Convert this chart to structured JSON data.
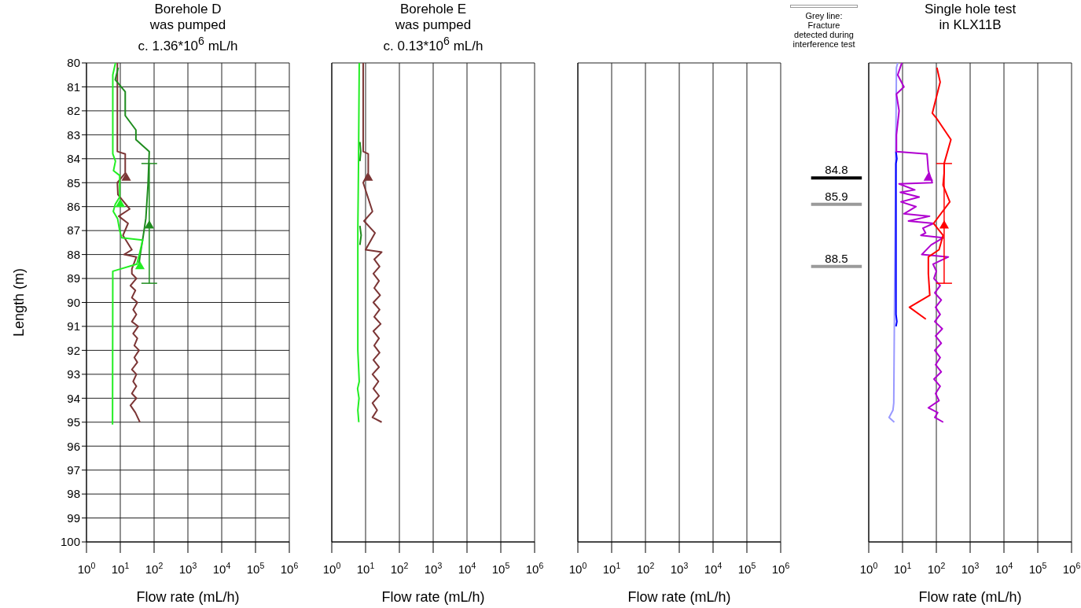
{
  "chart_data": [
    {
      "type": "line",
      "title": "Borehole D\nwas pumped\nc. 1.36*10$^{6}$ mL/h",
      "xlabel": "Flow rate (mL/h)",
      "ylabel": "Length (m)",
      "log": "x",
      "grid": true,
      "xlim": [
        1,
        1000000
      ],
      "xticks": [
        {
          "value": 1,
          "label": "10$^{0}$"
        },
        {
          "value": 10,
          "label": "10$^{1}$"
        },
        {
          "value": 100,
          "label": "10$^{2}$"
        },
        {
          "value": 1000,
          "label": "10$^{3}$"
        },
        {
          "value": 10000,
          "label": "10$^{4}$"
        },
        {
          "value": 100000,
          "label": "10$^{5}$"
        },
        {
          "value": 1000000,
          "label": "10$^{6}$"
        }
      ],
      "ylim": [
        100,
        80
      ],
      "yticks": [
        80,
        81,
        82,
        83,
        84,
        85,
        86,
        87,
        88,
        89,
        90,
        91,
        92,
        93,
        94,
        95,
        96,
        97,
        98,
        99,
        100
      ],
      "series": [
        {
          "color": "#7b3535",
          "x": [
            8.2,
            8.2,
            14,
            14,
            8.2,
            8.5,
            19,
            9,
            17,
            12,
            22,
            13,
            30,
            22,
            22,
            30,
            20,
            28,
            22,
            32,
            24,
            30,
            22,
            34,
            24,
            32,
            26,
            36,
            26,
            32,
            22,
            30,
            24,
            30,
            22,
            30,
            20,
            28,
            38
          ],
          "values": [
            80.0,
            83.7,
            83.8,
            84.6,
            85.0,
            85.5,
            86.1,
            86.4,
            86.7,
            87.2,
            87.8,
            88.0,
            88.1,
            88.6,
            88.8,
            89.0,
            89.3,
            89.5,
            89.8,
            90.0,
            90.3,
            90.5,
            90.8,
            91.0,
            91.3,
            91.5,
            91.8,
            92.0,
            92.3,
            92.5,
            92.8,
            93.0,
            93.3,
            93.5,
            93.8,
            94.0,
            94.3,
            94.6,
            95.0
          ]
        },
        {
          "color": "#1e8c1e",
          "x": [
            8.7,
            7.1,
            14,
            14,
            29,
            29,
            72,
            66,
            57,
            48,
            38,
            35
          ],
          "values": [
            80.2,
            80.7,
            81.2,
            82.2,
            82.8,
            83.2,
            83.7,
            85.1,
            86.5,
            87.2,
            88.1,
            88.5
          ]
        },
        {
          "color": "#22ee22",
          "x": [
            7.2,
            6.0,
            6.0,
            7.2,
            6.3,
            9.6,
            9.6,
            7.1,
            6.2,
            8.3,
            9.6,
            11,
            46,
            38,
            31,
            6.0,
            5.9
          ],
          "values": [
            80.0,
            80.5,
            83.8,
            84.1,
            84.5,
            84.7,
            85.6,
            85.9,
            86.2,
            86.5,
            87.0,
            87.3,
            87.4,
            87.9,
            88.4,
            88.7,
            95.1
          ]
        },
        {
          "type": "scatter",
          "marker": "triangle",
          "color": "#7b3535",
          "x": [
            15
          ],
          "values": [
            84.8
          ]
        },
        {
          "type": "scatter",
          "marker": "triangle",
          "color": "#22ee22",
          "x": [
            10,
            38
          ],
          "values": [
            85.9,
            88.5
          ]
        },
        {
          "type": "scatter",
          "marker": "triangle",
          "color": "#1e8c1e",
          "x": [
            72
          ],
          "values": [
            86.8
          ],
          "errors": [
            [
              84.2,
              89.2
            ]
          ]
        }
      ]
    },
    {
      "type": "line",
      "title": "Borehole E\nwas pumped\nc. 0.13*10$^{6}$ mL/h",
      "xlabel": "Flow rate (mL/h)",
      "log": "x",
      "grid": true,
      "tick_labels": "x",
      "xlim": [
        1,
        1000000
      ],
      "xticks": [
        {
          "value": 1,
          "label": "10$^{0}$"
        },
        {
          "value": 10,
          "label": "10$^{1}$"
        },
        {
          "value": 100,
          "label": "10$^{2}$"
        },
        {
          "value": 1000,
          "label": "10$^{3}$"
        },
        {
          "value": 10000,
          "label": "10$^{4}$"
        },
        {
          "value": 100000,
          "label": "10$^{5}$"
        },
        {
          "value": 1000000,
          "label": "10$^{6}$"
        }
      ],
      "ylim": [
        100,
        80
      ],
      "yticks": [
        80,
        81,
        82,
        83,
        84,
        85,
        86,
        87,
        88,
        89,
        90,
        91,
        92,
        93,
        94,
        95,
        96,
        97,
        98,
        99,
        100
      ],
      "series": [
        {
          "color": "#7b3535",
          "x": [
            8.5,
            8.5,
            12,
            12,
            8.5,
            16,
            9,
            19,
            10,
            30,
            18,
            26,
            17,
            25,
            18,
            27,
            17,
            26,
            18,
            28,
            17,
            25,
            18,
            26,
            17,
            25,
            16,
            24,
            17,
            25,
            16,
            22,
            16,
            30
          ],
          "values": [
            80.0,
            83.7,
            83.8,
            84.6,
            85.0,
            86.2,
            86.6,
            87.1,
            87.8,
            87.9,
            88.2,
            88.5,
            88.8,
            89.1,
            89.4,
            89.7,
            90.0,
            90.3,
            90.6,
            90.9,
            91.2,
            91.5,
            91.8,
            92.1,
            92.4,
            92.7,
            93.0,
            93.3,
            93.6,
            93.9,
            94.2,
            94.5,
            94.8,
            95.0
          ]
        },
        {
          "color": "#1e8c1e",
          "x": [
            6.8,
            7.2,
            6.8
          ],
          "values": [
            83.3,
            83.7,
            84.1
          ]
        },
        {
          "color": "#1e8c1e",
          "x": [
            6.8,
            7.4,
            6.8
          ],
          "values": [
            86.8,
            87.2,
            87.6
          ]
        },
        {
          "color": "#22ee22",
          "x": [
            6.5,
            6.2,
            5.9,
            5.9,
            6.5,
            5.8,
            6.4,
            5.9,
            6.3
          ],
          "values": [
            80.0,
            84.0,
            87.0,
            92.0,
            93.3,
            93.6,
            94.0,
            94.5,
            95.0
          ]
        },
        {
          "type": "scatter",
          "marker": "triangle",
          "color": "#7b3535",
          "x": [
            12
          ],
          "values": [
            84.8
          ]
        }
      ]
    },
    {
      "type": "line",
      "xlabel": "Flow rate (mL/h)",
      "log": "x",
      "grid": true,
      "tick_labels": "x",
      "xlim": [
        1,
        1000000
      ],
      "xticks": [
        {
          "value": 1,
          "label": "10$^{0}$"
        },
        {
          "value": 10,
          "label": "10$^{1}$"
        },
        {
          "value": 100,
          "label": "10$^{2}$"
        },
        {
          "value": 1000,
          "label": "10$^{3}$"
        },
        {
          "value": 10000,
          "label": "10$^{4}$"
        },
        {
          "value": 100000,
          "label": "10$^{5}$"
        },
        {
          "value": 1000000,
          "label": "10$^{6}$"
        }
      ],
      "ylim": [
        100,
        80
      ],
      "yticks": [
        80,
        81,
        82,
        83,
        84,
        85,
        86,
        87,
        88,
        89,
        90,
        91,
        92,
        93,
        94,
        95,
        96,
        97,
        98,
        99,
        100
      ],
      "annotations": [
        "Grey line:\nFracture\ndetected during\ninterference test"
      ],
      "ref_lines": [
        {
          "axis": "y",
          "value": 84.8,
          "label": "84.8",
          "color": "#000000"
        },
        {
          "axis": "y",
          "value": 85.9,
          "label": "85.9",
          "color": "#9a9a9a"
        },
        {
          "axis": "y",
          "value": 88.5,
          "label": "88.5",
          "color": "#9a9a9a"
        }
      ]
    },
    {
      "type": "line",
      "title": "Single hole test\nin KLX11B",
      "xlabel": "Flow rate (mL/h)",
      "log": "x",
      "grid": true,
      "tick_labels": "x",
      "xlim": [
        1,
        1000000
      ],
      "xticks": [
        {
          "value": 1,
          "label": "10$^{0}$"
        },
        {
          "value": 10,
          "label": "10$^{1}$"
        },
        {
          "value": 100,
          "label": "10$^{2}$"
        },
        {
          "value": 1000,
          "label": "10$^{3}$"
        },
        {
          "value": 10000,
          "label": "10$^{4}$"
        },
        {
          "value": 100000,
          "label": "10$^{5}$"
        },
        {
          "value": 1000000,
          "label": "10$^{6}$"
        }
      ],
      "ylim": [
        100,
        80
      ],
      "yticks": [
        80,
        81,
        82,
        83,
        84,
        85,
        86,
        87,
        88,
        89,
        90,
        91,
        92,
        93,
        94,
        95,
        96,
        97,
        98,
        99,
        100
      ],
      "series": [
        {
          "color": "#9999ff",
          "x": [
            7.2,
            6.6,
            6.2,
            5.8,
            5.5,
            5.2,
            4.0,
            5.7
          ],
          "values": [
            80.0,
            80.2,
            85.0,
            90.0,
            94.2,
            94.5,
            94.8,
            95.0
          ]
        },
        {
          "color": "#0000ff",
          "x": [
            6.4,
            6.8,
            6.4,
            6.4,
            6.8,
            6.4
          ],
          "values": [
            83.7,
            84.0,
            84.2,
            90.5,
            90.8,
            91.0
          ]
        },
        {
          "color": "#b000d0",
          "x": [
            9.5,
            7.2,
            11,
            6.6,
            7.9,
            6.6,
            6.6,
            53,
            58,
            76,
            7.9,
            23,
            8.6,
            31,
            9,
            25,
            11,
            63,
            15,
            83,
            40,
            48,
            35,
            158,
            70,
            37,
            226,
            80,
            100,
            85,
            130,
            90,
            140,
            95,
            130,
            90,
            150,
            95,
            140,
            90,
            130,
            95,
            140,
            85,
            130,
            95,
            120,
            58,
            110,
            90,
            160
          ],
          "values": [
            80.0,
            80.5,
            81.0,
            81.3,
            82.0,
            83.0,
            83.7,
            83.8,
            84.5,
            85.0,
            85.05,
            85.3,
            85.4,
            85.6,
            85.8,
            86.0,
            86.3,
            86.4,
            86.6,
            86.7,
            86.9,
            87.1,
            87.2,
            87.3,
            87.6,
            88.0,
            88.1,
            88.4,
            88.7,
            89.0,
            89.3,
            89.6,
            89.9,
            90.2,
            90.5,
            90.8,
            91.1,
            91.4,
            91.7,
            92.0,
            92.3,
            92.6,
            92.9,
            93.2,
            93.5,
            93.8,
            94.1,
            94.4,
            94.6,
            94.8,
            95.0
          ]
        },
        {
          "color": "#ff0000",
          "x": [
            104,
            130,
            76,
            100,
            270,
            170,
            170,
            158,
            250,
            83,
            158,
            120,
            58,
            58,
            64,
            16,
            49
          ],
          "values": [
            80.2,
            80.8,
            82.1,
            82.3,
            83.2,
            84.2,
            84.6,
            85.1,
            85.8,
            86.7,
            87.2,
            87.8,
            88.1,
            88.8,
            89.7,
            90.2,
            90.7
          ]
        },
        {
          "type": "scatter",
          "marker": "triangle",
          "color": "#b000d0",
          "x": [
            58
          ],
          "values": [
            84.8
          ]
        },
        {
          "type": "scatter",
          "marker": "triangle",
          "color": "#ff0000",
          "x": [
            170
          ],
          "values": [
            86.8
          ],
          "errors": [
            [
              84.2,
              89.2
            ]
          ]
        }
      ]
    }
  ]
}
